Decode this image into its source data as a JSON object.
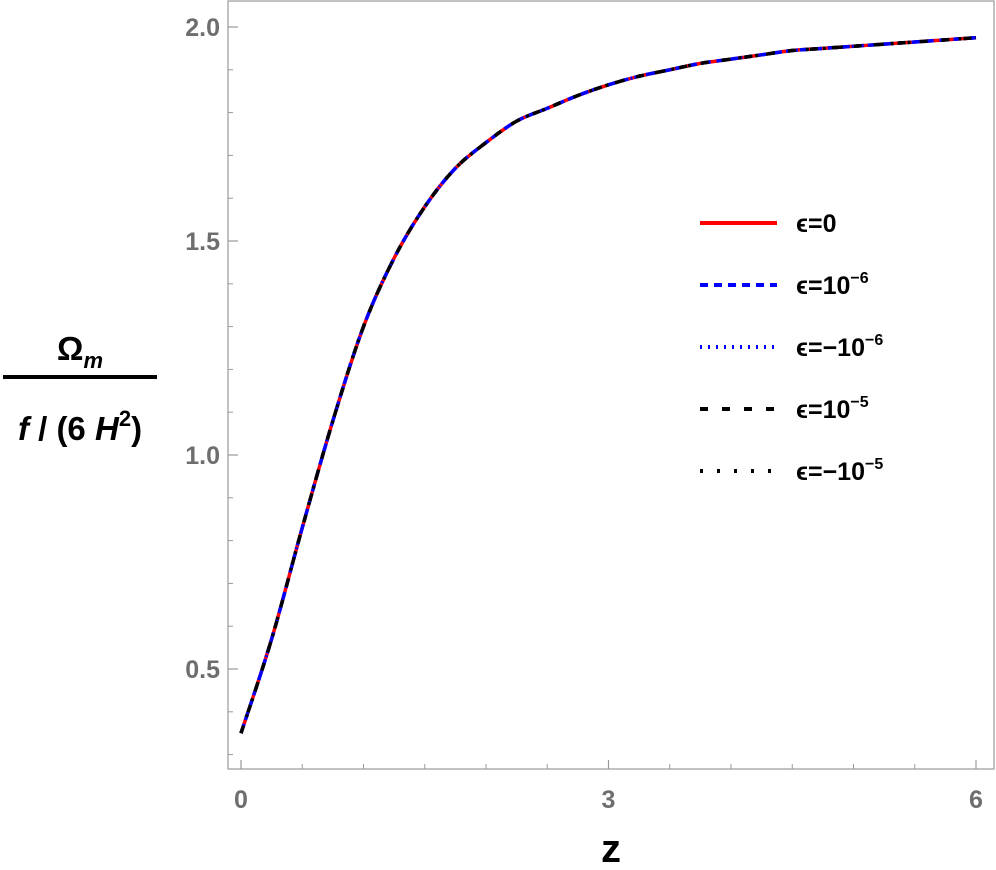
{
  "chart_data": {
    "type": "line",
    "xlabel": "z",
    "ylabel": {
      "numerator": "Ω",
      "numerator_sub": "m",
      "denominator_parts": [
        "f",
        " / (6 ",
        "H",
        "2",
        ")"
      ]
    },
    "xlim": [
      0,
      6.05
    ],
    "ylim": [
      0.23,
      2.06
    ],
    "xticks": [
      {
        "value": 0,
        "label": "0"
      },
      {
        "value": 3,
        "label": "3"
      },
      {
        "value": 6,
        "label": "6"
      }
    ],
    "yticks": [
      {
        "value": 0.5,
        "label": "0.5"
      },
      {
        "value": 1.0,
        "label": "1.0"
      },
      {
        "value": 1.5,
        "label": "1.5"
      },
      {
        "value": 2.0,
        "label": "2.0"
      }
    ],
    "x": [
      0,
      0.25,
      0.5,
      0.75,
      1.0,
      1.25,
      1.5,
      1.75,
      2.0,
      2.25,
      2.5,
      2.75,
      3.0,
      3.25,
      3.5,
      3.75,
      4.0,
      4.25,
      4.5,
      4.75,
      5.0,
      5.25,
      5.5,
      5.75,
      6.0
    ],
    "y": [
      0.35,
      0.57,
      0.83,
      1.08,
      1.3,
      1.46,
      1.58,
      1.67,
      1.73,
      1.78,
      1.81,
      1.84,
      1.865,
      1.885,
      1.9,
      1.915,
      1.925,
      1.935,
      1.945,
      1.95,
      1.955,
      1.96,
      1.965,
      1.97,
      1.975
    ],
    "series": [
      {
        "name_base": "ϵ=0",
        "name_sup": "",
        "color": "#ff0000",
        "style": "solid"
      },
      {
        "name_base": "ϵ=10",
        "name_sup": "−6",
        "color": "#0000ff",
        "style": "dashed"
      },
      {
        "name_base": "ϵ=−10",
        "name_sup": "−6",
        "color": "#0000ff",
        "style": "dotted"
      },
      {
        "name_base": "ϵ=10",
        "name_sup": "−5",
        "color": "#000000",
        "style": "dashed-wide"
      },
      {
        "name_base": "ϵ=−10",
        "name_sup": "−5",
        "color": "#000000",
        "style": "dotted-wide"
      }
    ],
    "legend_position": "right-middle",
    "grid": false
  }
}
